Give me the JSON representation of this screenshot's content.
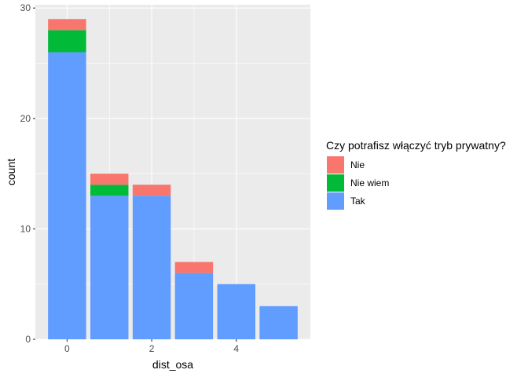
{
  "chart_data": {
    "type": "bar",
    "stacked": true,
    "xlabel": "dist_osa",
    "ylabel": "count",
    "x": [
      0,
      1,
      2,
      3,
      4,
      5
    ],
    "xticks": [
      0,
      2,
      4
    ],
    "yticks": [
      0,
      10,
      20,
      30
    ],
    "xlim": [
      -0.75,
      5.75
    ],
    "ylim": [
      0,
      30.3
    ],
    "grid": true,
    "legend": {
      "title": "Czy potrafisz włączyć tryb prywatny?",
      "position": "right"
    },
    "series": [
      {
        "name": "Nie",
        "color": "#F8766D",
        "values": [
          1,
          1,
          1,
          1,
          0,
          0
        ]
      },
      {
        "name": "Nie wiem",
        "color": "#00BA38",
        "values": [
          2,
          1,
          0,
          0,
          0,
          0
        ]
      },
      {
        "name": "Tak",
        "color": "#619CFF",
        "values": [
          26,
          13,
          13,
          6,
          5,
          3
        ]
      }
    ]
  }
}
